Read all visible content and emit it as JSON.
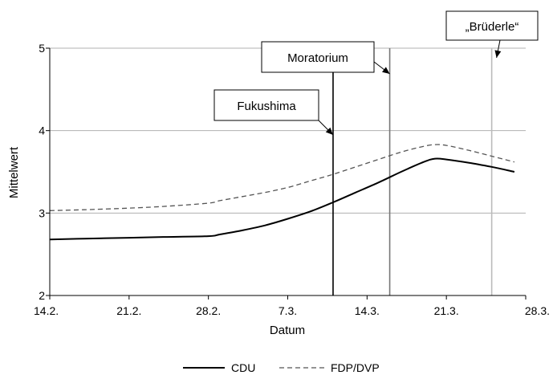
{
  "chart_data": {
    "type": "line",
    "xlabel": "Datum",
    "ylabel": "Mittelwert",
    "xlim": [
      "2011-02-14",
      "2011-03-28"
    ],
    "ylim": [
      2,
      5
    ],
    "xticks": [
      {
        "date": "2011-02-14",
        "label": "14.2."
      },
      {
        "date": "2011-02-21",
        "label": "21.2."
      },
      {
        "date": "2011-02-28",
        "label": "28.2."
      },
      {
        "date": "2011-03-07",
        "label": "7.3."
      },
      {
        "date": "2011-03-14",
        "label": "14.3."
      },
      {
        "date": "2011-03-21",
        "label": "21.3."
      },
      {
        "date": "2011-03-28",
        "label": "28.3."
      }
    ],
    "yticks": [
      {
        "value": 2,
        "label": "2"
      },
      {
        "value": 3,
        "label": "3"
      },
      {
        "value": 4,
        "label": "4"
      },
      {
        "value": 5,
        "label": "5"
      }
    ],
    "grid": "horizontal",
    "legend_position": "bottom",
    "series": [
      {
        "name": "CDU",
        "color": "#000000",
        "dash": "solid",
        "x": [
          "2011-02-14",
          "2011-02-17",
          "2011-02-21",
          "2011-02-24",
          "2011-02-28",
          "2011-03-01",
          "2011-03-03",
          "2011-03-05",
          "2011-03-07",
          "2011-03-09",
          "2011-03-11",
          "2011-03-13",
          "2011-03-15",
          "2011-03-17",
          "2011-03-19",
          "2011-03-20",
          "2011-03-21",
          "2011-03-23",
          "2011-03-25",
          "2011-03-27"
        ],
        "values": [
          2.68,
          2.69,
          2.7,
          2.71,
          2.72,
          2.74,
          2.79,
          2.85,
          2.93,
          3.02,
          3.13,
          3.25,
          3.37,
          3.5,
          3.62,
          3.66,
          3.65,
          3.61,
          3.56,
          3.5
        ]
      },
      {
        "name": "FDP/DVP",
        "color": "#555555",
        "dash": "dashed",
        "x": [
          "2011-02-14",
          "2011-02-17",
          "2011-02-21",
          "2011-02-24",
          "2011-02-28",
          "2011-03-01",
          "2011-03-03",
          "2011-03-05",
          "2011-03-07",
          "2011-03-09",
          "2011-03-11",
          "2011-03-13",
          "2011-03-15",
          "2011-03-17",
          "2011-03-19",
          "2011-03-20",
          "2011-03-21",
          "2011-03-23",
          "2011-03-25",
          "2011-03-27"
        ],
        "values": [
          3.03,
          3.04,
          3.06,
          3.08,
          3.12,
          3.15,
          3.2,
          3.25,
          3.31,
          3.39,
          3.47,
          3.56,
          3.65,
          3.74,
          3.81,
          3.83,
          3.82,
          3.76,
          3.69,
          3.62
        ]
      }
    ],
    "annotations": [
      {
        "label": "Fukushima",
        "date": "2011-03-11",
        "color": "#000000"
      },
      {
        "label": "Moratorium",
        "date": "2011-03-16",
        "color": "#777777"
      },
      {
        "label": "„Brüderle“",
        "date": "2011-03-25",
        "color": "#bbbbbb"
      }
    ]
  }
}
